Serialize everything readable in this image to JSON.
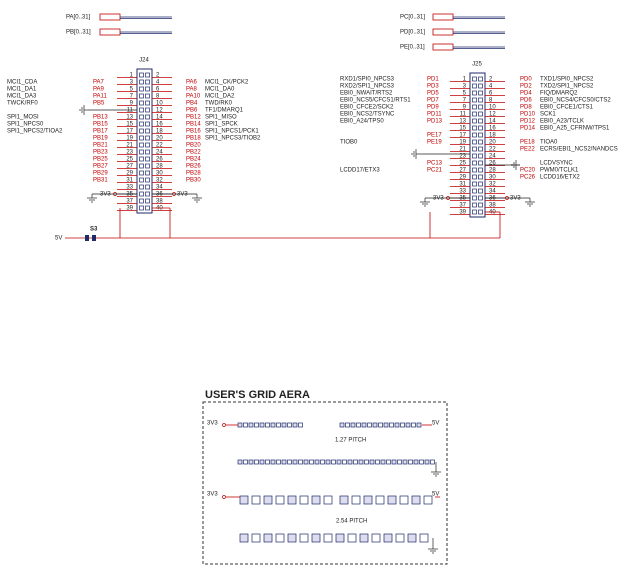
{
  "ports": {
    "left": [
      "PA[0..31]",
      "PB[0..31]"
    ],
    "right": [
      "PC[0..31]",
      "PD[0..31]",
      "PE[0..31]"
    ]
  },
  "connectors": [
    {
      "label": "J24",
      "rows": [
        {
          "pins": [
            1,
            2
          ]
        },
        {
          "pins": [
            3,
            4
          ],
          "left_port": "PA7",
          "left_signal": "MCI1_CDA",
          "right_port": "PA6",
          "right_signal": "MCI1_CK/PCK2"
        },
        {
          "pins": [
            5,
            6
          ],
          "left_port": "PA9",
          "left_signal": "MCI1_DA1",
          "right_port": "PA8",
          "right_signal": "MCI1_DA0"
        },
        {
          "pins": [
            7,
            8
          ],
          "left_port": "PA11",
          "left_signal": "MCI1_DA3",
          "right_port": "PA10",
          "right_signal": "MCI1_DA2"
        },
        {
          "pins": [
            9,
            10
          ],
          "left_port": "PB5",
          "left_signal": "TWCK/RF0",
          "right_port": "PB4",
          "right_signal": "TWD/RK0"
        },
        {
          "pins": [
            11,
            12
          ],
          "right_port": "PB6",
          "right_signal": "TF1/DMARQ1"
        },
        {
          "pins": [
            13,
            14
          ],
          "left_port": "PB13",
          "left_signal": "SPI1_MOSI",
          "right_port": "PB12",
          "right_signal": "SPI1_MISO"
        },
        {
          "pins": [
            15,
            16
          ],
          "left_port": "PB15",
          "left_signal": "SPI1_NPCS0",
          "right_port": "PB14",
          "right_signal": "SPI1_SPCK"
        },
        {
          "pins": [
            17,
            18
          ],
          "left_port": "PB17",
          "left_signal": "SPI1_NPCS2/TIOA2",
          "right_port": "PB16",
          "right_signal": "SPI1_NPCS1/PCK1"
        },
        {
          "pins": [
            19,
            20
          ],
          "left_port": "PB19",
          "right_port": "PB18",
          "right_signal": "SPI1_NPCS3/TIOB2"
        },
        {
          "pins": [
            21,
            22
          ],
          "left_port": "PB21",
          "right_port": "PB20"
        },
        {
          "pins": [
            23,
            24
          ],
          "left_port": "PB23",
          "right_port": "PB22"
        },
        {
          "pins": [
            25,
            26
          ],
          "left_port": "PB25",
          "right_port": "PB24"
        },
        {
          "pins": [
            27,
            28
          ],
          "left_port": "PB27",
          "right_port": "PB26"
        },
        {
          "pins": [
            29,
            30
          ],
          "left_port": "PB29",
          "right_port": "PB28"
        },
        {
          "pins": [
            31,
            32
          ],
          "left_port": "PB31",
          "right_port": "PB30"
        },
        {
          "pins": [
            33,
            34
          ]
        },
        {
          "pins": [
            35,
            36
          ],
          "left_net": "3V3",
          "right_net": "3V3"
        },
        {
          "pins": [
            37,
            38
          ]
        },
        {
          "pins": [
            39,
            40
          ]
        }
      ]
    },
    {
      "label": "J25",
      "rows": [
        {
          "pins": [
            1,
            2
          ],
          "left_port": "PD1",
          "left_signal": "RXD1/SPI0_NPCS3",
          "right_port": "PD0",
          "right_signal": "TXD1/SPI0_NPCS2"
        },
        {
          "pins": [
            3,
            4
          ],
          "left_port": "PD3",
          "left_signal": "RXD2/SPI1_NPCS3",
          "right_port": "PD2",
          "right_signal": "TXD2/SPI1_NPCS2"
        },
        {
          "pins": [
            5,
            6
          ],
          "left_port": "PD5",
          "left_signal": "EBI0_NWAIT/RTS2",
          "right_port": "PD4",
          "right_signal": "FIQ/DMARQ2"
        },
        {
          "pins": [
            7,
            8
          ],
          "left_port": "PD7",
          "left_signal": "EBI0_NCS5/CFCS1/RTS1",
          "right_port": "PD6",
          "right_signal": "EBI0_NCS4/CFCS0/CTS2"
        },
        {
          "pins": [
            9,
            10
          ],
          "left_port": "PD9",
          "left_signal": "EBI0_CFCE2/SCK2",
          "right_port": "PD8",
          "right_signal": "EBI0_CFCE1/CTS1"
        },
        {
          "pins": [
            11,
            12
          ],
          "left_port": "PD11",
          "left_signal": "EBI0_NCS2/TSYNC",
          "right_port": "PD10",
          "right_signal": "SCK1"
        },
        {
          "pins": [
            13,
            14
          ],
          "left_port": "PD13",
          "left_signal": "EBI0_A24/TPS0",
          "right_port": "PD12",
          "right_signal": "EBI0_A23/TCLK"
        },
        {
          "pins": [
            15,
            16
          ],
          "right_port": "PD14",
          "right_signal": "EBI0_A25_CFRNW/TPS1"
        },
        {
          "pins": [
            17,
            18
          ],
          "left_port": "PE17"
        },
        {
          "pins": [
            19,
            20
          ],
          "left_port": "PE19",
          "left_signal": "TIOB0",
          "right_port": "PE18",
          "right_signal": "TIOA0"
        },
        {
          "pins": [
            21,
            22
          ],
          "right_port": "PE22",
          "right_signal": "ECRS/EBI1_NCS2/NANDCS"
        },
        {
          "pins": [
            23,
            24
          ]
        },
        {
          "pins": [
            25,
            26
          ],
          "left_port": "PC13",
          "right_signal": "LCDVSYNC"
        },
        {
          "pins": [
            27,
            28
          ],
          "left_port": "PC21",
          "left_signal": "LCDD17/ETX3",
          "right_port": "PC20",
          "right_signal": "PWM0/TCLK1"
        },
        {
          "pins": [
            29,
            30
          ],
          "right_port": "PC26",
          "right_signal": "LCDD16/ETX2"
        },
        {
          "pins": [
            31,
            32
          ]
        },
        {
          "pins": [
            33,
            34
          ]
        },
        {
          "pins": [
            35,
            36
          ],
          "left_net": "3V3",
          "right_net": "3V3"
        },
        {
          "pins": [
            37,
            38
          ]
        },
        {
          "pins": [
            39,
            40
          ]
        }
      ]
    }
  ],
  "bus": {
    "net": "5V",
    "switch": "S3"
  },
  "grid_area": {
    "title": "USER'S GRID AERA",
    "fine": {
      "left_net": "3V3",
      "right_net": "5V",
      "pitch": "1.27 PITCH"
    },
    "coarse": {
      "left_net": "3V3",
      "right_net": "5V",
      "pitch": "2.54 PITCH"
    }
  }
}
